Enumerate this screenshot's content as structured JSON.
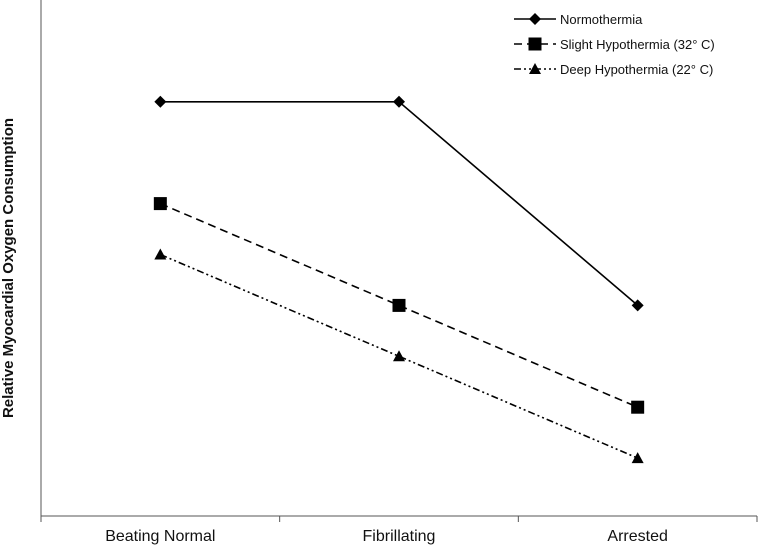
{
  "chart_data": {
    "type": "line",
    "title": "",
    "xlabel": "",
    "ylabel": "Relative Myocardial Oxygen Consumption",
    "y_ticks_shown": false,
    "grid": false,
    "legend_position": "top-right",
    "categories": [
      "Beating Normal",
      "Fibrillating",
      "Arrested"
    ],
    "ylim": [
      0,
      10
    ],
    "series": [
      {
        "name": "Normothermia",
        "values": [
          8,
          8,
          4
        ],
        "marker": "diamond",
        "line_style": "solid",
        "color": "#000000"
      },
      {
        "name": "Slight Hypothermia (32° C)",
        "values": [
          6,
          4,
          2
        ],
        "marker": "square",
        "line_style": "dashed",
        "color": "#000000"
      },
      {
        "name": "Deep Hypothermia (22° C)",
        "values": [
          5,
          3,
          1
        ],
        "marker": "triangle",
        "line_style": "dash-dot-dot",
        "color": "#000000"
      }
    ]
  }
}
